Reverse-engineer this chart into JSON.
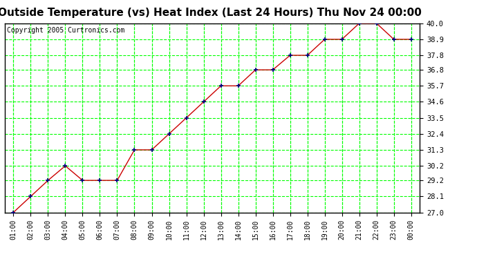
{
  "title": "Outside Temperature (vs) Heat Index (Last 24 Hours) Thu Nov 24 00:00",
  "copyright": "Copyright 2005 Curtronics.com",
  "x_labels": [
    "01:00",
    "02:00",
    "03:00",
    "04:00",
    "05:00",
    "06:00",
    "07:00",
    "08:00",
    "09:00",
    "10:00",
    "11:00",
    "12:00",
    "13:00",
    "14:00",
    "15:00",
    "16:00",
    "17:00",
    "18:00",
    "19:00",
    "20:00",
    "21:00",
    "22:00",
    "23:00",
    "00:00"
  ],
  "y_values": [
    27.0,
    28.1,
    29.2,
    30.2,
    29.2,
    29.2,
    29.2,
    31.3,
    31.3,
    32.4,
    33.5,
    34.6,
    35.7,
    35.7,
    36.8,
    36.8,
    37.8,
    37.8,
    38.9,
    38.9,
    40.0,
    40.0,
    38.9,
    38.9
  ],
  "ylim": [
    27.0,
    40.0
  ],
  "yticks": [
    27.0,
    28.1,
    29.2,
    30.2,
    31.3,
    32.4,
    33.5,
    34.6,
    35.7,
    36.8,
    37.8,
    38.9,
    40.0
  ],
  "bg_color": "#ffffff",
  "plot_bg_color": "#ffffff",
  "grid_color": "#00ff00",
  "line_color": "#cc0000",
  "marker_color": "#cc0000",
  "marker_edge_color": "#000080",
  "title_fontsize": 11,
  "copyright_fontsize": 7
}
